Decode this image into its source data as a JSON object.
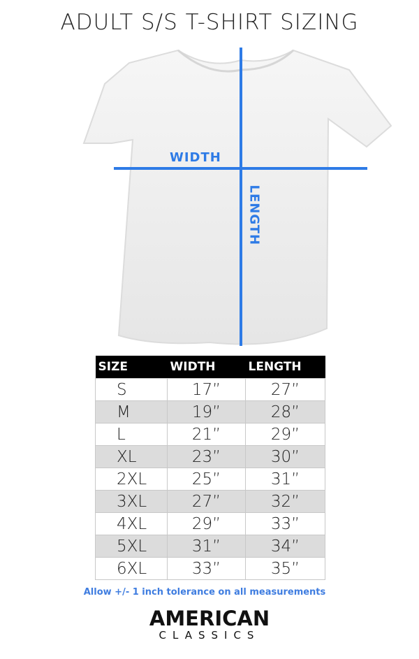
{
  "title": "ADULT S/S T-SHIRT SIZING",
  "diagram": {
    "width_label": "WIDTH",
    "length_label": "LENGTH",
    "accent_color": "#2e7be6"
  },
  "table": {
    "headers": [
      "SIZE",
      "WIDTH",
      "LENGTH"
    ],
    "rows": [
      [
        "S",
        "17”",
        "27”"
      ],
      [
        "M",
        "19”",
        "28”"
      ],
      [
        "L",
        "21”",
        "29”"
      ],
      [
        "XL",
        "23”",
        "30”"
      ],
      [
        "2XL",
        "25”",
        "31”"
      ],
      [
        "3XL",
        "27”",
        "32”"
      ],
      [
        "4XL",
        "29”",
        "33”"
      ],
      [
        "5XL",
        "31”",
        "34”"
      ],
      [
        "6XL",
        "33”",
        "35”"
      ]
    ]
  },
  "note": "Allow +/- 1 inch tolerance on all measurements",
  "logo": {
    "line1": "AMERICAN",
    "line2": "CLASSICS"
  }
}
